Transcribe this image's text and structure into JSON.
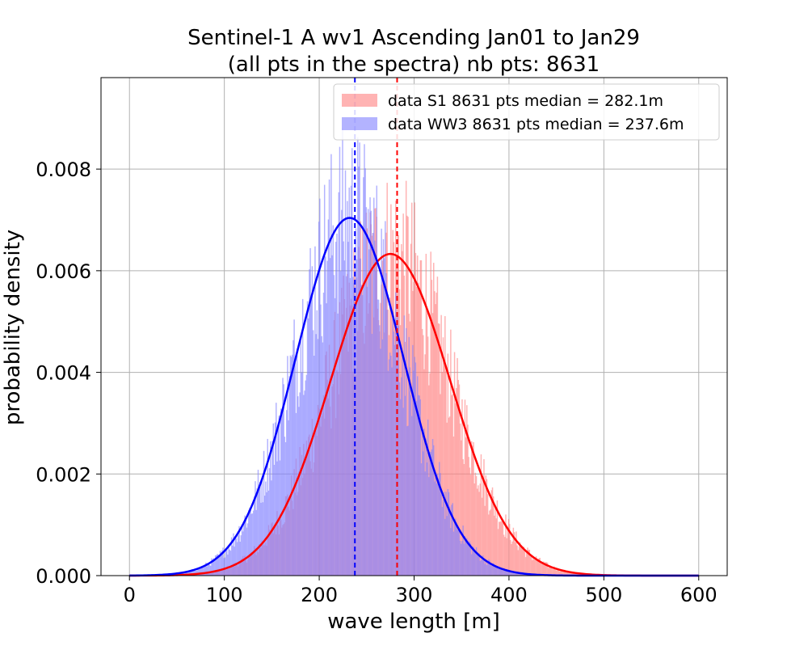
{
  "chart_data": {
    "type": "histogram",
    "title_line1": "Sentinel-1 A wv1 Ascending Jan01 to Jan29",
    "title_line2": "(all pts in the spectra) nb pts: 8631",
    "xlabel": "wave length [m]",
    "ylabel": "probability density",
    "xlim": [
      -30,
      630
    ],
    "ylim": [
      0,
      0.0098
    ],
    "xticks": [
      0,
      100,
      200,
      300,
      400,
      500,
      600
    ],
    "yticks": [
      0.0,
      0.002,
      0.004,
      0.006,
      0.008
    ],
    "ytick_labels": [
      "0.000",
      "0.002",
      "0.004",
      "0.006",
      "0.008"
    ],
    "grid": true,
    "legend_position": "top-right",
    "bin_width": 1,
    "series": [
      {
        "name": "data S1 8631 pts median = 282.1m",
        "kind": "histogram",
        "color": "#ff8080",
        "fit": {
          "mean": 275,
          "std": 63,
          "peak": 0.00633,
          "color": "#ff0000"
        },
        "median": 282.1,
        "median_color": "#ff0000"
      },
      {
        "name": "data WW3 8631 pts median = 237.6m",
        "kind": "histogram",
        "color": "#8080ff",
        "fit": {
          "mean": 232,
          "std": 57,
          "peak": 0.00704,
          "color": "#0000ff"
        },
        "median": 237.6,
        "median_color": "#0000ff"
      }
    ],
    "overlap_color": "#b37fc9"
  }
}
